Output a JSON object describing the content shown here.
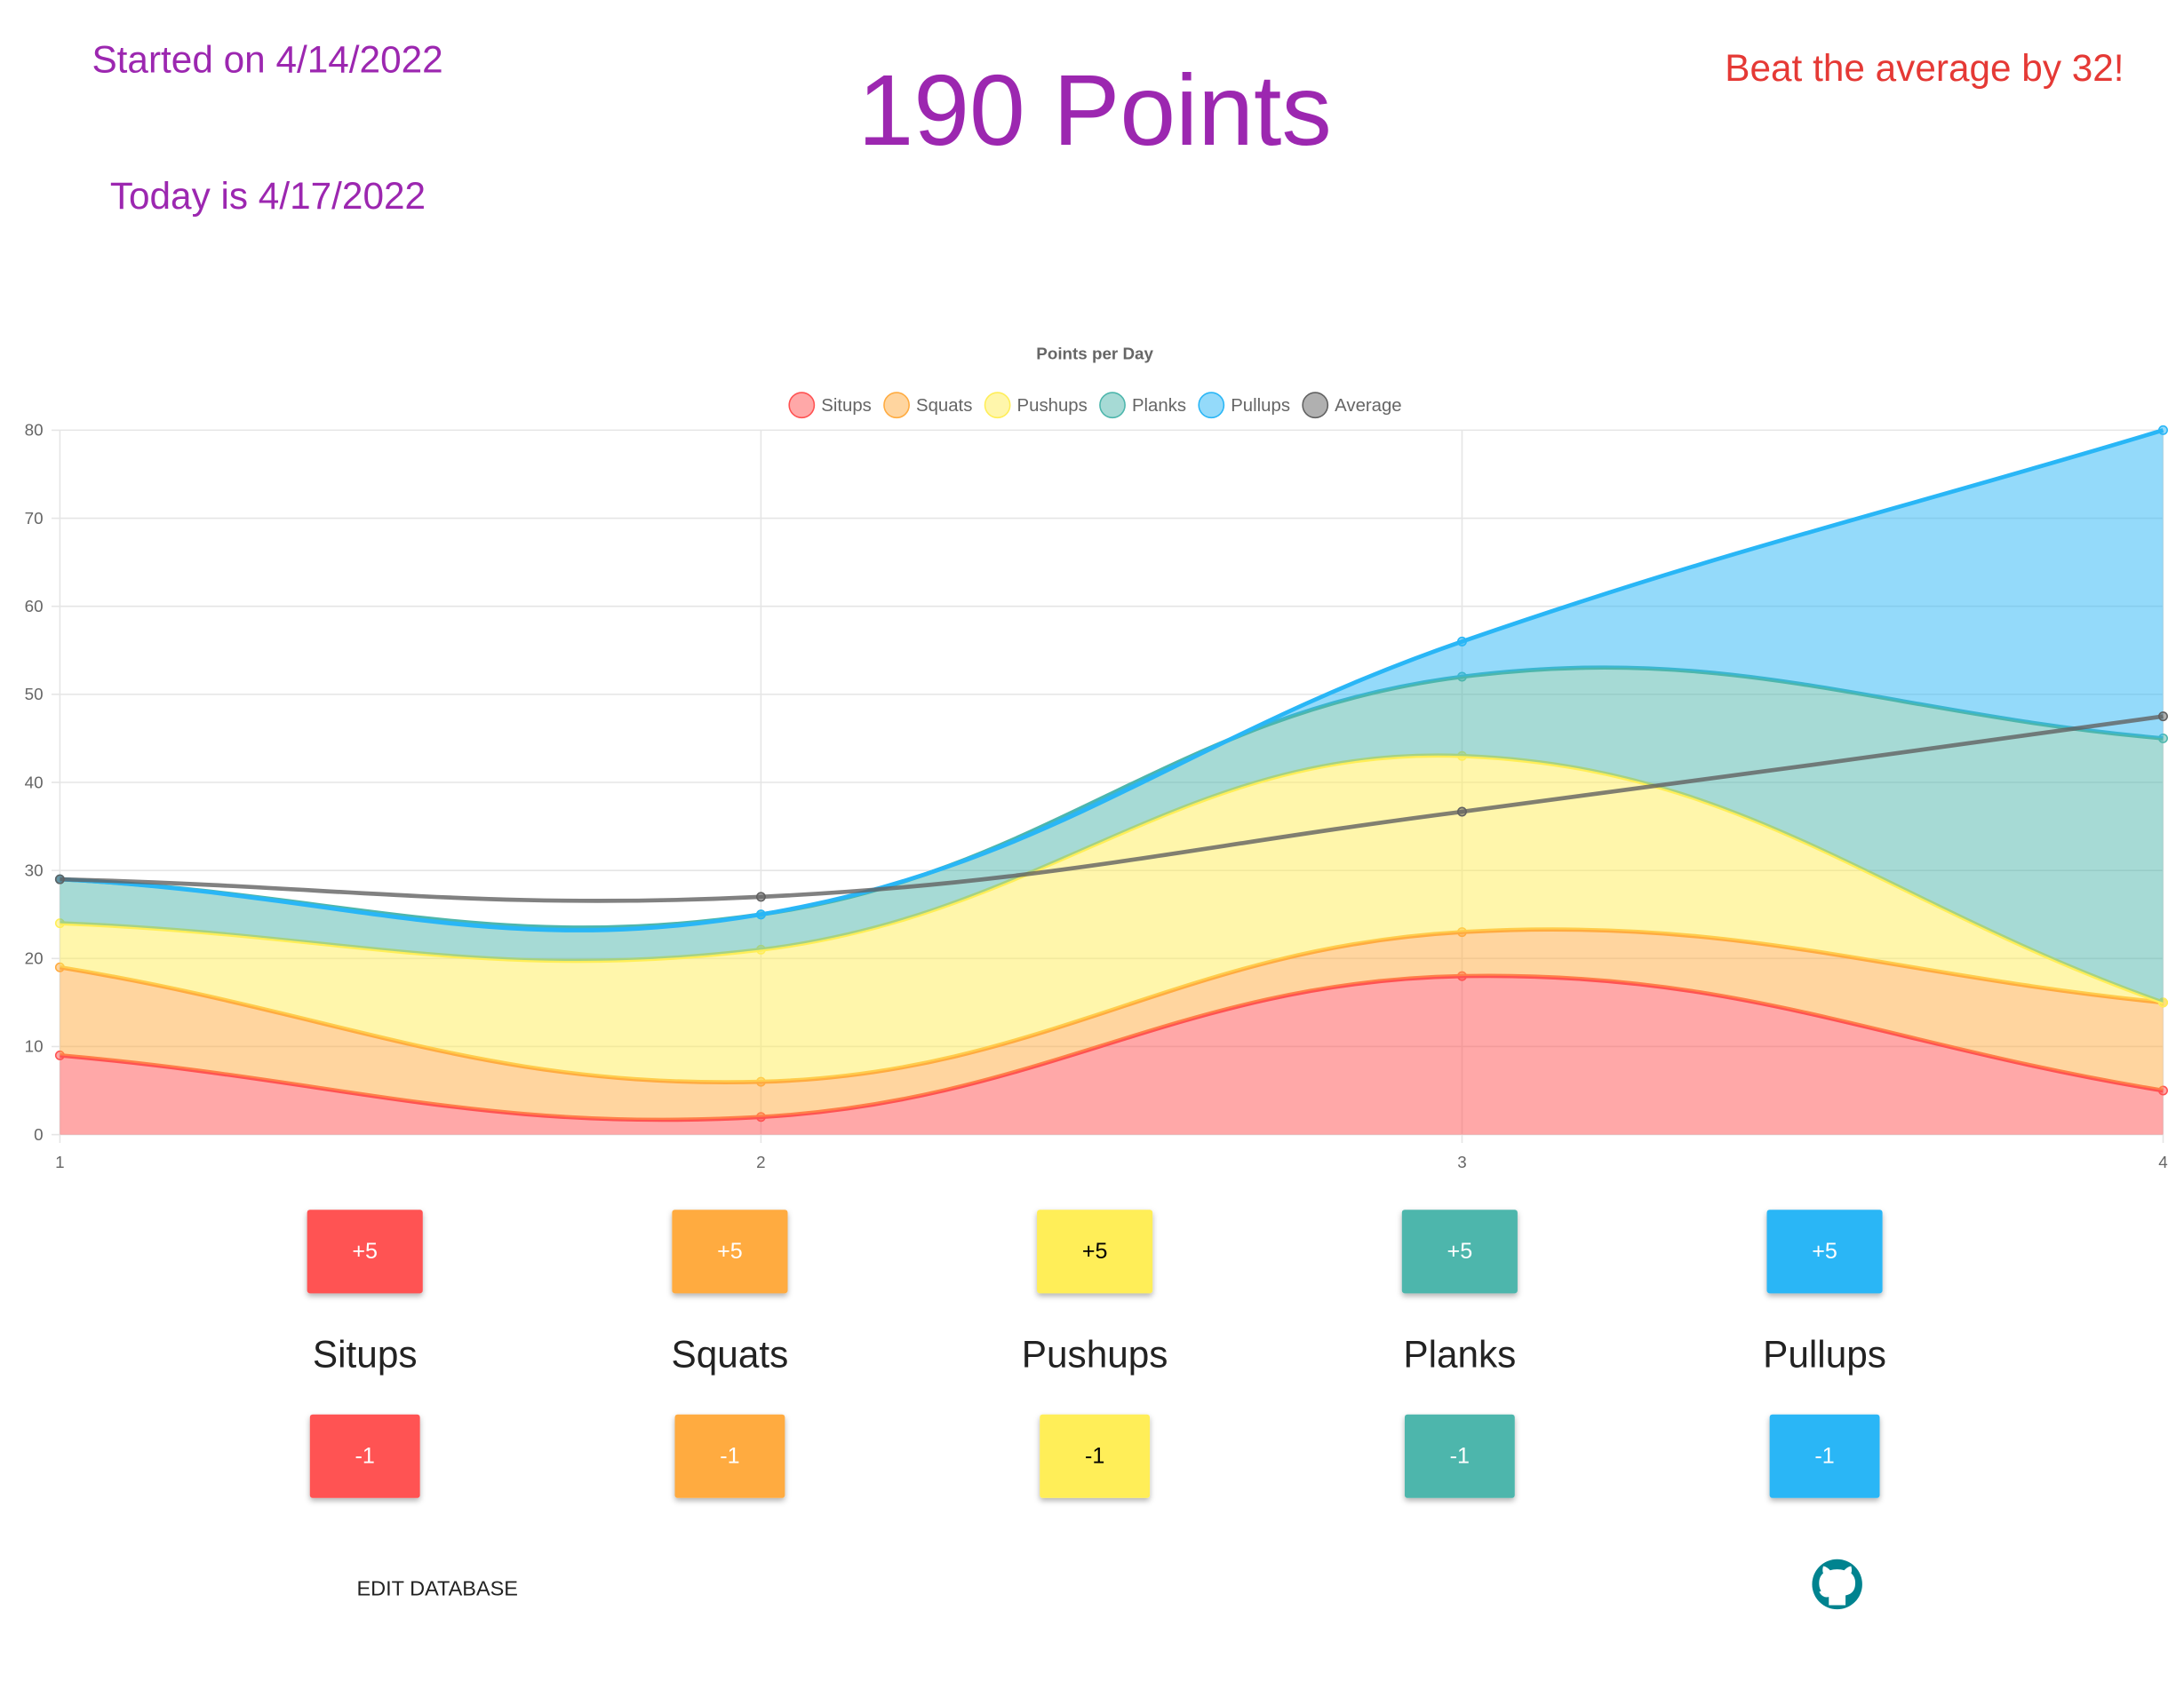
{
  "header": {
    "started": "Started on 4/14/2022",
    "points": "190 Points",
    "beat": "Beat the average by 32!",
    "today": "Today is 4/17/2022"
  },
  "chart_data": {
    "type": "area",
    "title": "Points per Day",
    "x": [
      1,
      2,
      3,
      4
    ],
    "xlim": [
      1,
      4
    ],
    "xticks": [
      1,
      2,
      3,
      4
    ],
    "ylim": [
      0,
      80
    ],
    "yticks": [
      0,
      10,
      20,
      30,
      40,
      50,
      60,
      70,
      80
    ],
    "grid": true,
    "series": [
      {
        "name": "Situps",
        "color": "#ff5252",
        "fill": true,
        "values": [
          9,
          2,
          18,
          5
        ]
      },
      {
        "name": "Squats",
        "color": "#ffab40",
        "fill": true,
        "values": [
          10,
          4,
          5,
          10
        ]
      },
      {
        "name": "Pushups",
        "color": "#ffee58",
        "fill": true,
        "values": [
          5,
          15,
          20,
          0
        ]
      },
      {
        "name": "Planks",
        "color": "#4db6ac",
        "fill": true,
        "values": [
          5,
          4,
          9,
          30
        ]
      },
      {
        "name": "Pullups",
        "color": "#29b6f6",
        "fill": true,
        "values": [
          0,
          0,
          4,
          35
        ]
      },
      {
        "name": "Average",
        "color": "#616161",
        "fill": false,
        "values": [
          29,
          27,
          36.67,
          47.5
        ]
      }
    ]
  },
  "buttons": [
    {
      "name": "Situps",
      "add": "+5",
      "sub": "-1",
      "color": "#ff5252",
      "text_color": "#ffffff"
    },
    {
      "name": "Squats",
      "add": "+5",
      "sub": "-1",
      "color": "#ffab40",
      "text_color": "#ffffff"
    },
    {
      "name": "Pushups",
      "add": "+5",
      "sub": "-1",
      "color": "#ffee58",
      "text_color": "#000000"
    },
    {
      "name": "Planks",
      "add": "+5",
      "sub": "-1",
      "color": "#4db6ac",
      "text_color": "#ffffff"
    },
    {
      "name": "Pullups",
      "add": "+5",
      "sub": "-1",
      "color": "#29b6f6",
      "text_color": "#ffffff"
    }
  ],
  "footer": {
    "edit": "EDIT DATABASE"
  }
}
